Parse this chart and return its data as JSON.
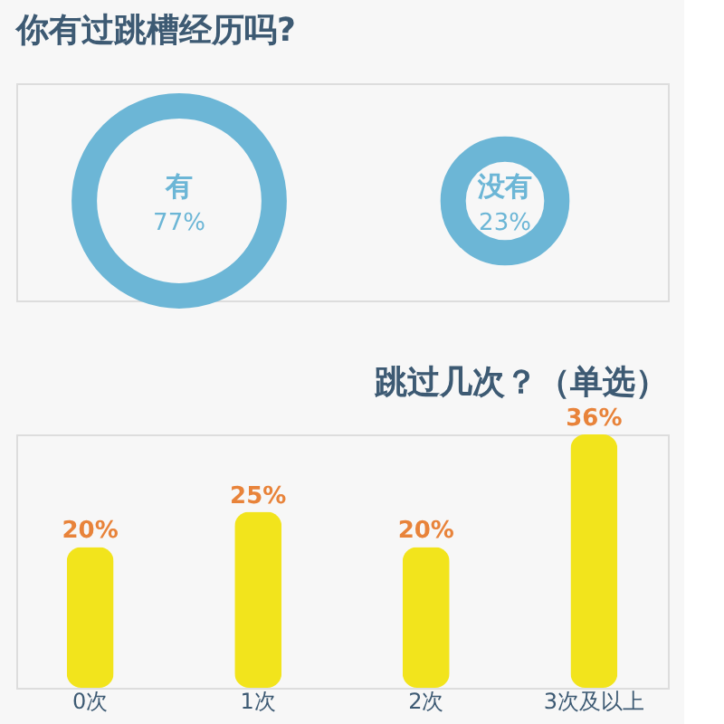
{
  "chart_data": [
    {
      "type": "other",
      "title": "你有过跳槽经历吗?",
      "categories": [
        "有",
        "没有"
      ],
      "values": [
        77,
        23
      ],
      "value_labels": [
        "77%",
        "23%"
      ],
      "color": "#6cb6d6"
    },
    {
      "type": "bar",
      "title": "跳过几次？（单选）",
      "categories": [
        "0次",
        "1次",
        "2次",
        "3次及以上"
      ],
      "values": [
        20,
        25,
        20,
        36
      ],
      "value_labels": [
        "20%",
        "25%",
        "20%",
        "36%"
      ],
      "color": "#f2e41c",
      "tick_labels": "x",
      "grid": false
    }
  ]
}
